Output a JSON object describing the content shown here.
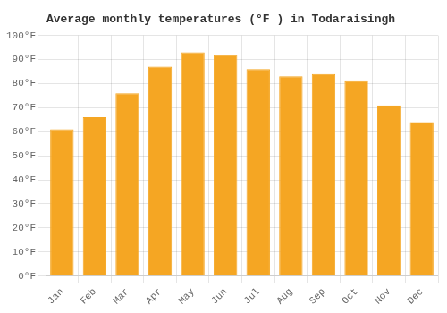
{
  "chart_data": {
    "type": "bar",
    "title": "Average monthly temperatures (°F ) in Todaraisingh",
    "categories": [
      "Jan",
      "Feb",
      "Mar",
      "Apr",
      "May",
      "Jun",
      "Jul",
      "Aug",
      "Sep",
      "Oct",
      "Nov",
      "Dec"
    ],
    "values": [
      61,
      66,
      76,
      87,
      93,
      92,
      86,
      83,
      84,
      81,
      71,
      64
    ],
    "color": "#F5A623",
    "ylim": [
      0,
      100
    ],
    "yticks": [
      {
        "value": 0,
        "label": "0°F"
      },
      {
        "value": 10,
        "label": "10°F"
      },
      {
        "value": 20,
        "label": "20°F"
      },
      {
        "value": 30,
        "label": "30°F"
      },
      {
        "value": 40,
        "label": "40°F"
      },
      {
        "value": 50,
        "label": "50°F"
      },
      {
        "value": 60,
        "label": "60°F"
      },
      {
        "value": 70,
        "label": "70°F"
      },
      {
        "value": 80,
        "label": "80°F"
      },
      {
        "value": 90,
        "label": "90°F"
      },
      {
        "value": 100,
        "label": "100°F"
      }
    ],
    "grid": true
  }
}
